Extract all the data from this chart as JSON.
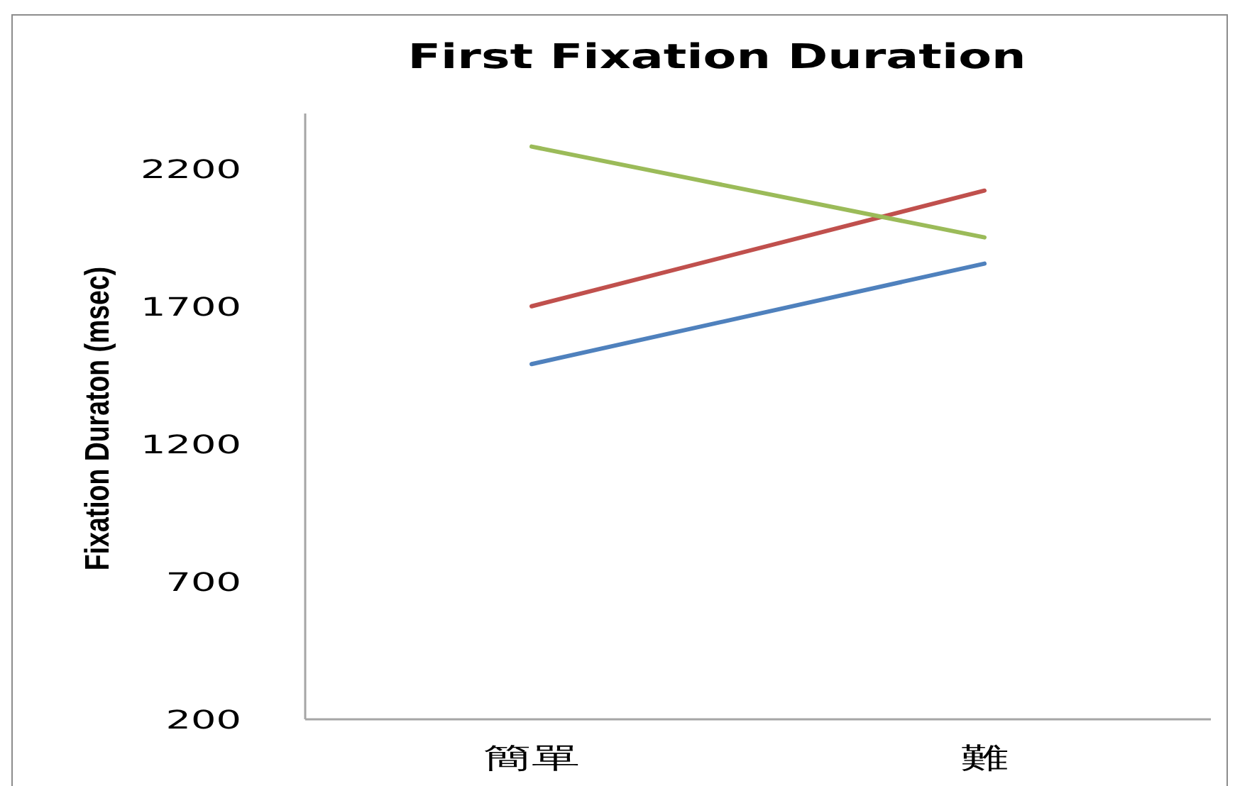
{
  "chart_data": {
    "type": "line",
    "title": "First Fixation Duration",
    "ylabel": "Fixation Duraton (msec)",
    "categories": [
      "簡單",
      "難"
    ],
    "series": [
      {
        "color": "#4f81bd",
        "values": [
          1490,
          1855
        ]
      },
      {
        "color": "#c0504d",
        "values": [
          1700,
          2120
        ]
      },
      {
        "color": "#9bbb59",
        "values": [
          2280,
          1950
        ]
      }
    ],
    "ylim": [
      200,
      2400
    ],
    "yticks": [
      200,
      700,
      1200,
      1700,
      2200
    ],
    "marker": "none",
    "line_style": "solid"
  }
}
